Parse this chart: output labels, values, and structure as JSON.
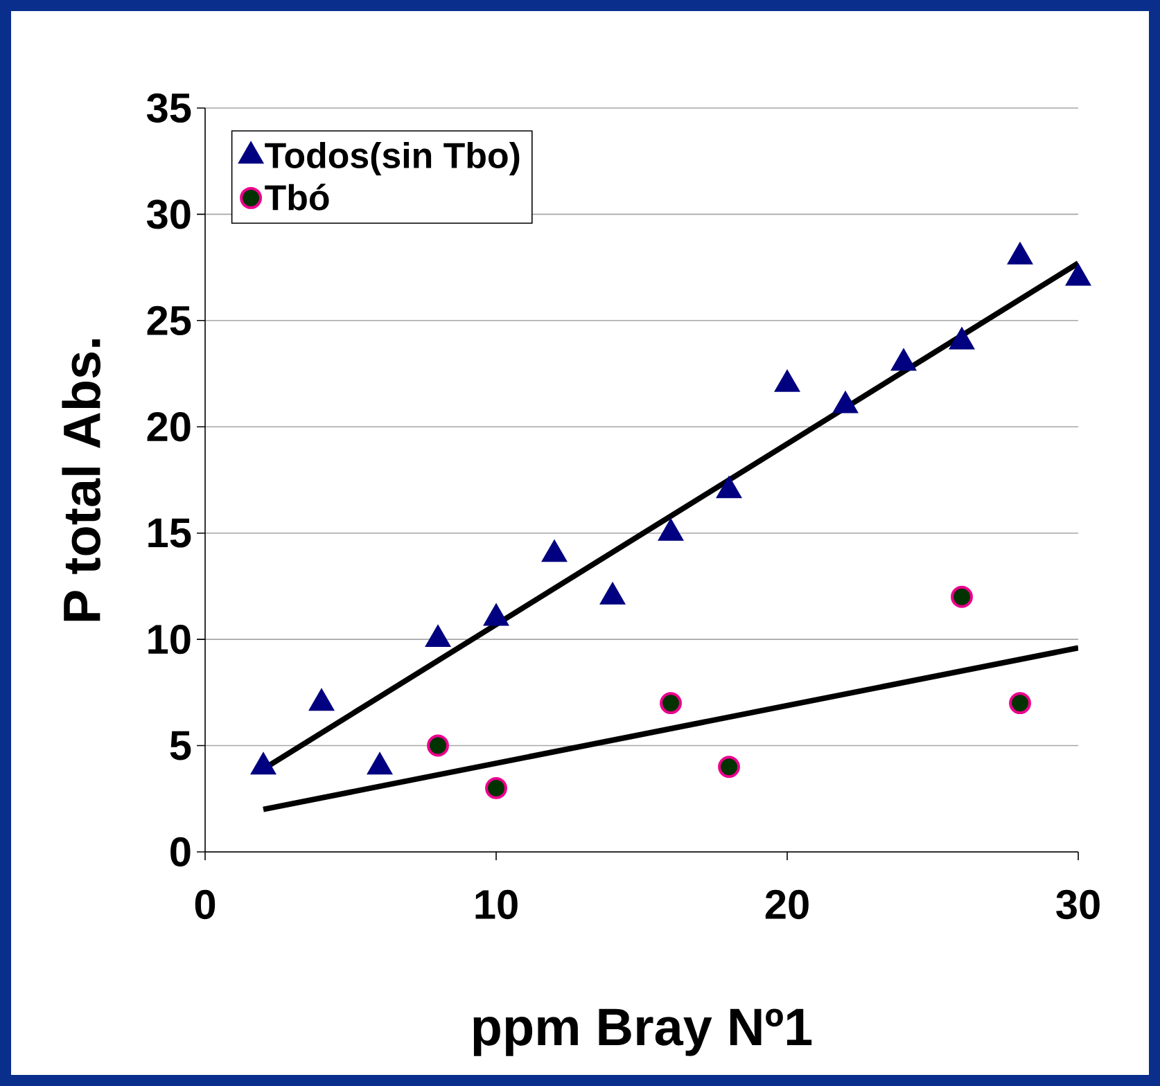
{
  "chart_data": {
    "type": "scatter",
    "xlabel": "ppm Bray Nº1",
    "ylabel": "P total Abs.",
    "xlim": [
      0,
      30
    ],
    "ylim": [
      0,
      35
    ],
    "xticks": [
      0,
      10,
      20,
      30
    ],
    "yticks": [
      0,
      5,
      10,
      15,
      20,
      25,
      30,
      35
    ],
    "grid": "y",
    "legend": "top left",
    "series": [
      {
        "name": "Todos(sin Tbo)",
        "color": "#000080",
        "marker": "triangle",
        "x": [
          2,
          4,
          6,
          8,
          10,
          12,
          14,
          16,
          18,
          20,
          22,
          24,
          26,
          28,
          30
        ],
        "values": [
          4,
          7,
          4,
          10,
          11,
          14,
          12,
          15,
          17,
          22,
          21,
          23,
          24,
          28,
          27
        ]
      },
      {
        "name": "Tbó",
        "color": "#003300",
        "marker": "circle",
        "x": [
          8,
          10,
          16,
          18,
          26,
          28
        ],
        "values": [
          5,
          3,
          7,
          4,
          12,
          7
        ]
      },
      {
        "type": "line",
        "color": "#000000",
        "marker": "none",
        "x": [
          2,
          30
        ],
        "values": [
          3.9,
          27.7
        ]
      },
      {
        "type": "line",
        "color": "#000000",
        "marker": "none",
        "x": [
          2,
          30
        ],
        "values": [
          2,
          9.6
        ]
      }
    ]
  }
}
